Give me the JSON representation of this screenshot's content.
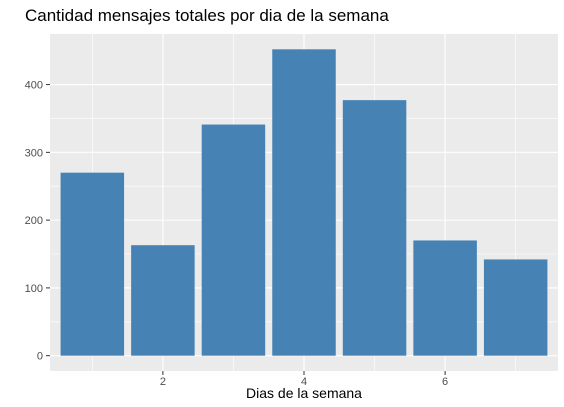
{
  "chart_data": {
    "type": "bar",
    "title": "Cantidad mensajes totales por dia de la semana",
    "xlabel": "Dias de la semana",
    "ylabel": "",
    "x": [
      1,
      2,
      3,
      4,
      5,
      6,
      7
    ],
    "values": [
      270,
      163,
      341,
      452,
      377,
      170,
      142
    ],
    "xlim": [
      0.4,
      7.6
    ],
    "ylim": [
      -22.6,
      474.6
    ],
    "x_ticks": [
      2,
      4,
      6
    ],
    "y_ticks": [
      0,
      100,
      200,
      300,
      400
    ],
    "grid": true,
    "background": "#EBEBEB",
    "bar_color": "#4682B4",
    "grid_major_color": "#FFFFFF"
  }
}
